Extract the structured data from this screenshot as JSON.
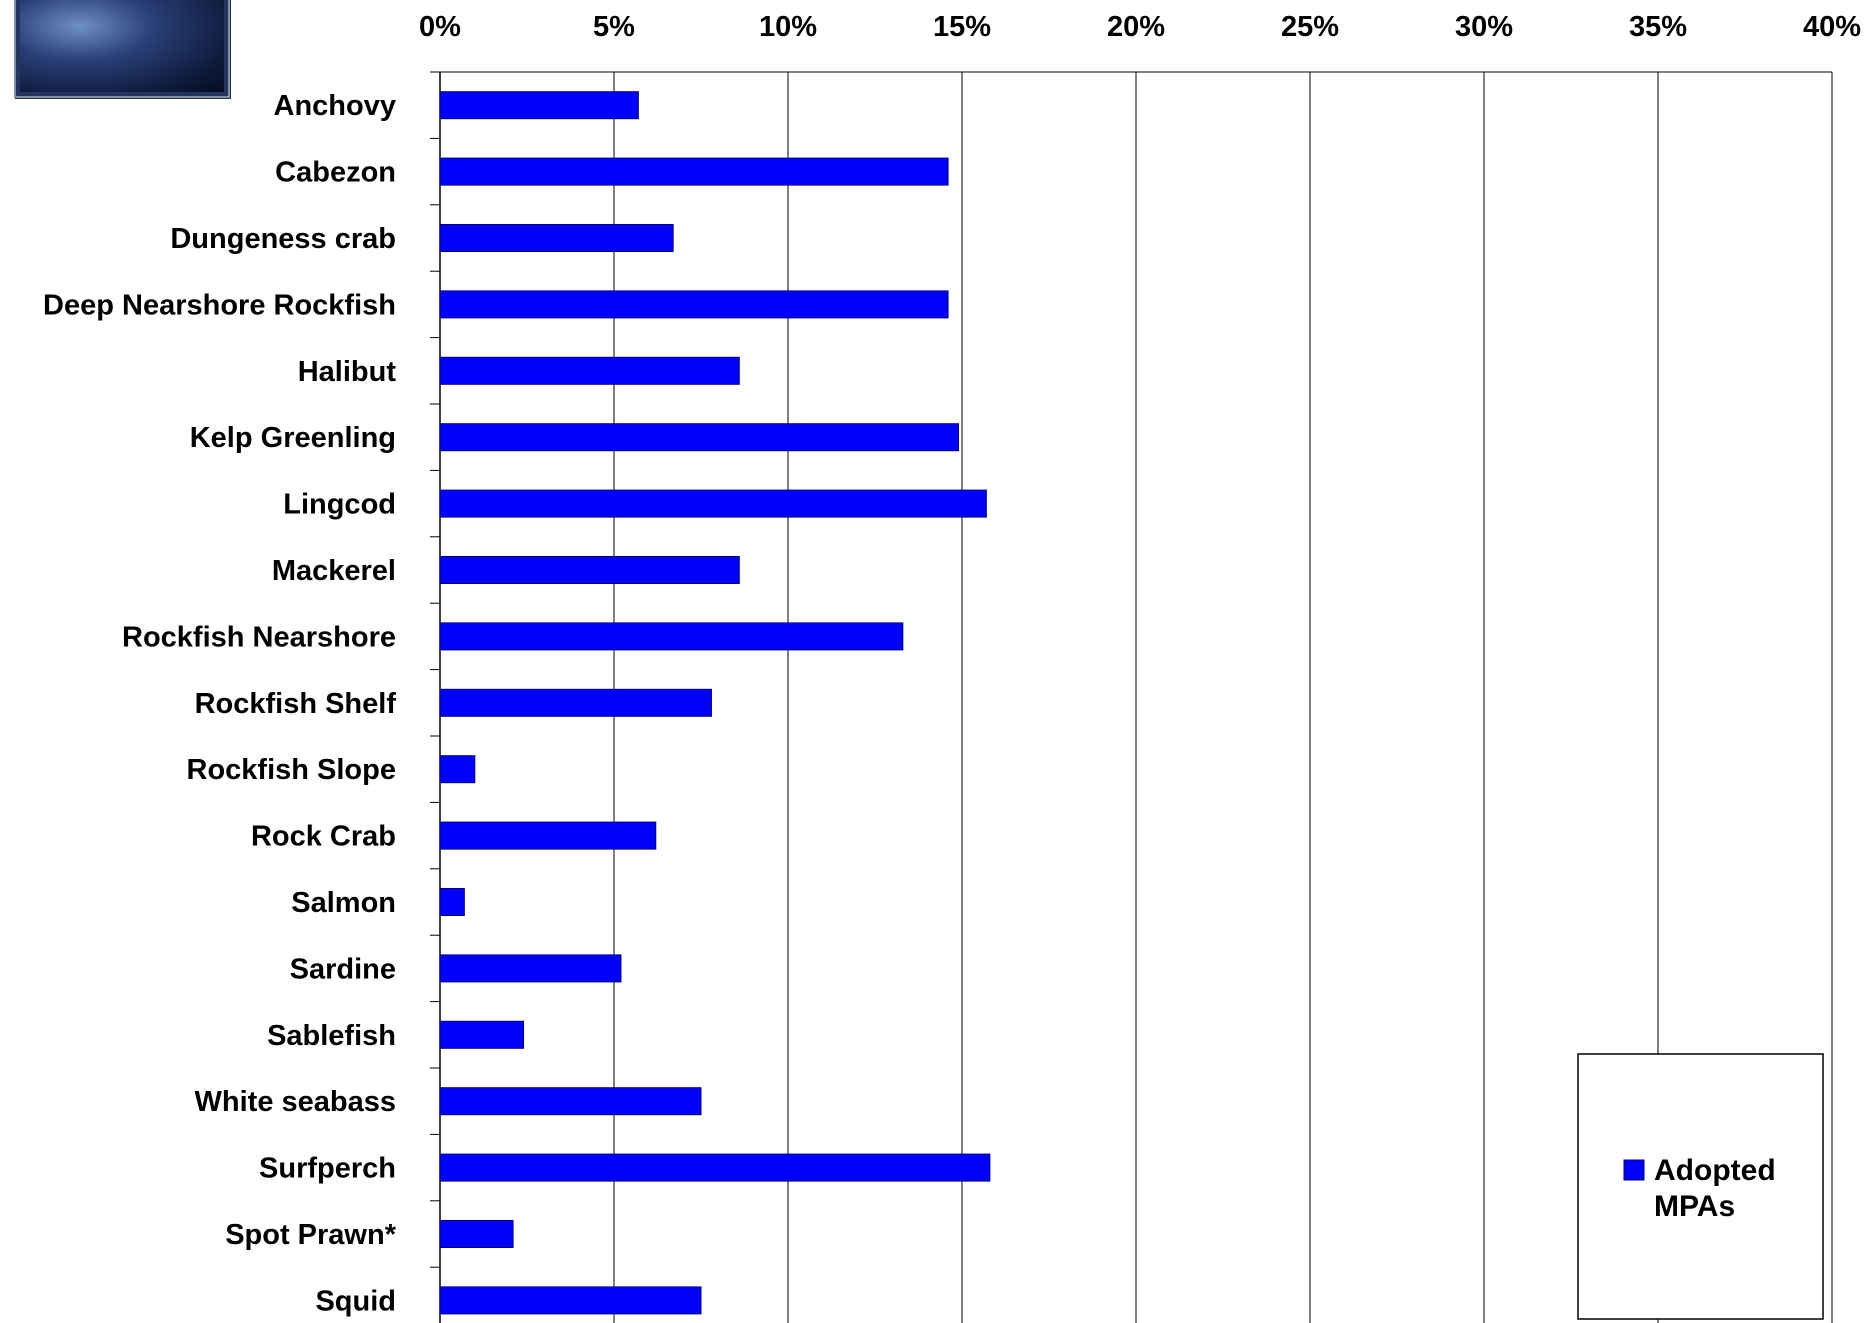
{
  "chart_data": {
    "type": "bar",
    "orientation": "horizontal",
    "categories": [
      "Anchovy",
      "Cabezon",
      "Dungeness crab",
      "Deep Nearshore Rockfish",
      "Halibut",
      "Kelp Greenling",
      "Lingcod",
      "Mackerel",
      "Rockfish Nearshore",
      "Rockfish Shelf",
      "Rockfish Slope",
      "Rock Crab",
      "Salmon",
      "Sardine",
      "Sablefish",
      "White seabass",
      "Surfperch",
      "Spot Prawn*",
      "Squid"
    ],
    "series": [
      {
        "name": "Adopted MPAs",
        "values": [
          5.7,
          14.6,
          6.7,
          14.6,
          8.6,
          14.9,
          15.7,
          8.6,
          13.3,
          7.8,
          1.0,
          6.2,
          0.7,
          5.2,
          2.4,
          7.5,
          15.8,
          2.1,
          7.5
        ]
      }
    ],
    "xlim": [
      0,
      40
    ],
    "xticks": [
      "0%",
      "5%",
      "10%",
      "15%",
      "20%",
      "25%",
      "30%",
      "35%",
      "40%"
    ],
    "x_axis_position": "top",
    "grid": "vertical",
    "legend": "bottom-right",
    "colors": {
      "bar": "#0000ff",
      "bar_edge": "#000080",
      "grid": "#000000"
    }
  },
  "logo": {
    "icon": "blue-photo-thumbnail"
  }
}
